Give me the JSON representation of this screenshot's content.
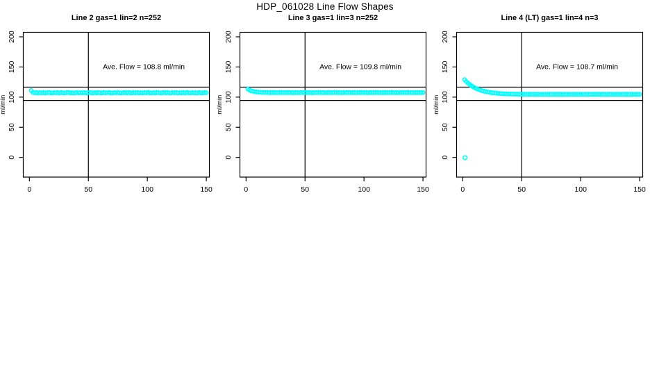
{
  "figure": {
    "title": "HDP_061028  Line Flow Shapes",
    "background": "#ffffff",
    "text_color": "#000000"
  },
  "chart_data": [
    {
      "type": "scatter",
      "title": "Line 2 gas=1 lin=2 n=252",
      "annotation": {
        "text": "Ave. Flow =  108.8  ml/min",
        "x": 97,
        "y": 150
      },
      "ave_flow_ml_min": 108.8,
      "n_points": 252,
      "ylabel": "ml/min",
      "xlim": [
        -5.2,
        152.6
      ],
      "ylim": [
        -32.6,
        207.5
      ],
      "xticks": [
        0,
        50,
        100,
        150
      ],
      "yticks": [
        0,
        50,
        100,
        150,
        200
      ],
      "vlines": [
        50
      ],
      "hlines": [
        116.5,
        94.5
      ],
      "marker": "open-circle",
      "marker_color": "#00FFFF",
      "x0": 1.5,
      "dx": 1.5,
      "y": [
        111.0,
        107.8,
        107.2,
        107.5,
        106.9,
        107.4,
        107.1,
        107.6,
        107.0,
        107.3,
        107.7,
        107.1,
        106.8,
        107.4,
        107.2,
        107.6,
        107.0,
        107.5,
        107.2,
        106.9,
        107.4,
        107.8,
        107.1,
        107.3,
        106.8,
        107.2,
        107.6,
        107.0,
        107.4,
        107.1,
        107.5,
        106.9,
        107.3,
        107.7,
        107.2,
        106.8,
        107.4,
        107.0,
        107.6,
        107.2,
        106.9,
        107.5,
        107.1,
        107.3,
        107.7,
        107.0,
        106.8,
        107.4,
        107.2,
        107.6,
        107.1,
        106.9,
        107.3,
        107.5,
        107.0,
        107.7,
        107.2,
        106.8,
        107.4,
        107.1,
        107.6,
        107.0,
        107.3,
        106.9,
        107.5,
        107.2,
        107.7,
        107.1,
        106.8,
        107.4,
        107.0,
        107.6,
        107.3,
        106.9,
        107.2,
        107.5,
        107.1,
        107.7,
        107.0,
        106.8,
        107.4,
        107.2,
        107.6,
        106.9,
        107.3,
        107.1,
        107.5,
        107.0,
        107.7,
        107.2,
        106.8,
        107.4,
        107.1,
        107.3,
        106.9,
        107.6,
        107.2,
        107.0,
        107.5,
        107.3
      ],
      "extra_points": []
    },
    {
      "type": "scatter",
      "title": "Line 3 gas=1 lin=3 n=252",
      "annotation": {
        "text": "Ave. Flow =  109.8  ml/min",
        "x": 97,
        "y": 150
      },
      "ave_flow_ml_min": 109.8,
      "n_points": 252,
      "ylabel": "ml/min",
      "xlim": [
        -5.2,
        152.6
      ],
      "ylim": [
        -32.6,
        207.5
      ],
      "xticks": [
        0,
        50,
        100,
        150
      ],
      "yticks": [
        0,
        50,
        100,
        150,
        200
      ],
      "vlines": [
        50
      ],
      "hlines": [
        116.5,
        94.5
      ],
      "marker": "open-circle",
      "marker_color": "#00FFFF",
      "x0": 1.5,
      "dx": 1.5,
      "y": [
        113.4,
        111.7,
        110.3,
        109.6,
        108.9,
        108.5,
        108.2,
        108.0,
        107.9,
        107.8,
        107.7,
        107.8,
        107.6,
        107.5,
        107.7,
        107.6,
        107.4,
        107.6,
        107.5,
        107.7,
        107.5,
        107.6,
        107.4,
        107.7,
        107.5,
        107.6,
        107.3,
        107.6,
        107.5,
        107.4,
        107.6,
        107.5,
        107.7,
        107.4,
        107.6,
        107.5,
        107.3,
        107.6,
        107.4,
        107.5,
        107.7,
        107.5,
        107.4,
        107.6,
        107.3,
        107.5,
        107.6,
        107.4,
        107.5,
        107.7,
        107.4,
        107.6,
        107.5,
        107.3,
        107.6,
        107.4,
        107.7,
        107.5,
        107.4,
        107.6,
        107.5,
        107.3,
        107.6,
        107.5,
        107.7,
        107.4,
        107.5,
        107.6,
        107.3,
        107.5,
        107.4,
        107.6,
        107.5,
        107.7,
        107.4,
        107.6,
        107.3,
        107.5,
        107.6,
        107.4,
        107.5,
        107.7,
        107.5,
        107.4,
        107.6,
        107.3,
        107.5,
        107.6,
        107.4,
        107.7,
        107.5,
        107.4,
        107.6,
        107.5,
        107.3,
        107.6,
        107.4,
        107.5,
        107.6,
        107.5
      ],
      "extra_points": []
    },
    {
      "type": "scatter",
      "title": "Line 4 (LT) gas=1 lin=4 n=3",
      "annotation": {
        "text": "Ave. Flow =  108.7  ml/min",
        "x": 97,
        "y": 150
      },
      "ave_flow_ml_min": 108.7,
      "n_points": 3,
      "ylabel": "ml/min",
      "xlim": [
        -5.2,
        152.6
      ],
      "ylim": [
        -32.6,
        207.5
      ],
      "xticks": [
        0,
        50,
        100,
        150
      ],
      "yticks": [
        0,
        50,
        100,
        150,
        200
      ],
      "vlines": [
        50
      ],
      "hlines": [
        116.5,
        94.5
      ],
      "marker": "open-circle",
      "marker_color": "#00FFFF",
      "x0": 1.5,
      "dx": 1.5,
      "y": [
        129.0,
        125.9,
        123.2,
        120.8,
        118.7,
        116.9,
        115.3,
        113.9,
        112.7,
        111.6,
        110.7,
        109.9,
        109.2,
        108.6,
        108.0,
        107.5,
        107.1,
        106.8,
        106.5,
        106.2,
        106.0,
        105.8,
        105.6,
        105.5,
        105.3,
        105.2,
        105.1,
        105.0,
        105.0,
        104.9,
        104.9,
        104.8,
        104.9,
        104.7,
        104.8,
        104.9,
        104.7,
        104.8,
        104.6,
        104.8,
        104.7,
        104.8,
        104.6,
        104.7,
        104.8,
        104.6,
        104.7,
        104.8,
        104.6,
        104.7,
        104.8,
        104.6,
        104.7,
        104.6,
        104.8,
        104.7,
        104.6,
        104.7,
        104.8,
        104.6,
        104.7,
        104.6,
        104.8,
        104.7,
        104.6,
        104.7,
        104.8,
        104.6,
        104.7,
        104.6,
        104.8,
        104.7,
        104.6,
        104.7,
        104.8,
        104.6,
        104.7,
        104.6,
        104.8,
        104.7,
        104.6,
        104.7,
        104.8,
        104.6,
        104.7,
        104.6,
        104.8,
        104.7,
        104.6,
        104.7,
        104.6,
        104.8,
        104.7,
        104.6,
        104.7,
        104.8,
        104.6,
        104.7,
        104.6,
        104.7
      ],
      "extra_points": [
        [
          2,
          -0.5
        ]
      ]
    }
  ]
}
